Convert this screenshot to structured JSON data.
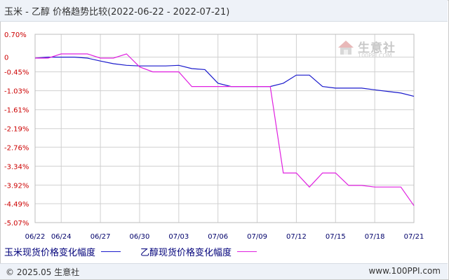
{
  "header": {
    "title": "玉米 - 乙醇 价格趋势比较(2022-06-22 - 2022-07-21)"
  },
  "watermark": {
    "text": "生意社",
    "sub": "100PPI.COM"
  },
  "legend": {
    "series_a": "玉米现货价格变化幅度",
    "series_b": "乙醇现货价格变化幅度"
  },
  "footer": {
    "copyright": "© 2025.05 生意社",
    "url": "www.100PPI.com"
  },
  "colors": {
    "series_a": "#1a1acc",
    "series_b": "#e020e0",
    "grid": "#d0d0d0",
    "axis_label_y": "#cc0000",
    "axis_label_x": "#00006a"
  },
  "chart_data": {
    "type": "line",
    "title": "玉米 - 乙醇 价格趋势比较(2022-06-22 - 2022-07-21)",
    "xlabel": "",
    "ylabel": "",
    "ylim": [
      -5.07,
      0.7
    ],
    "ylim_reversed_top": 0.7,
    "y_ticks": [
      0.7,
      0,
      -0.45,
      -1.03,
      -1.61,
      -2.19,
      -2.76,
      -3.34,
      -3.92,
      -4.49,
      -5.07
    ],
    "y_tick_labels": [
      "0.70%",
      "0",
      "-0.45%",
      "-1.03%",
      "-1.61%",
      "-2.19%",
      "-2.76%",
      "-3.34%",
      "-3.92%",
      "-4.49%",
      "-5.07%"
    ],
    "x_range": [
      "2022-06-22",
      "2022-07-21"
    ],
    "x_ticks": [
      "2022-06-22",
      "2022-06-24",
      "2022-06-27",
      "2022-06-30",
      "2022-07-03",
      "2022-07-06",
      "2022-07-09",
      "2022-07-12",
      "2022-07-15",
      "2022-07-18",
      "2022-07-21"
    ],
    "x_tick_labels": [
      "06/22",
      "06/24",
      "06/27",
      "06/30",
      "07/03",
      "07/06",
      "07/09",
      "07/12",
      "07/15",
      "07/18",
      "07/21"
    ],
    "grid": true,
    "legend_position": "bottom",
    "series": [
      {
        "name": "玉米现货价格变化幅度",
        "color": "#1a1acc",
        "points": [
          [
            "2022-06-22",
            -0.03
          ],
          [
            "2022-06-23",
            0.0
          ],
          [
            "2022-06-24",
            0.0
          ],
          [
            "2022-06-25",
            0.0
          ],
          [
            "2022-06-26",
            -0.03
          ],
          [
            "2022-06-27",
            -0.12
          ],
          [
            "2022-06-28",
            -0.2
          ],
          [
            "2022-06-29",
            -0.25
          ],
          [
            "2022-06-30",
            -0.27
          ],
          [
            "2022-07-01",
            -0.27
          ],
          [
            "2022-07-02",
            -0.27
          ],
          [
            "2022-07-03",
            -0.25
          ],
          [
            "2022-07-04",
            -0.35
          ],
          [
            "2022-07-05",
            -0.38
          ],
          [
            "2022-07-06",
            -0.8
          ],
          [
            "2022-07-07",
            -0.9
          ],
          [
            "2022-07-08",
            -0.9
          ],
          [
            "2022-07-09",
            -0.9
          ],
          [
            "2022-07-10",
            -0.9
          ],
          [
            "2022-07-11",
            -0.8
          ],
          [
            "2022-07-12",
            -0.55
          ],
          [
            "2022-07-13",
            -0.55
          ],
          [
            "2022-07-14",
            -0.9
          ],
          [
            "2022-07-15",
            -0.95
          ],
          [
            "2022-07-16",
            -0.95
          ],
          [
            "2022-07-17",
            -0.95
          ],
          [
            "2022-07-18",
            -1.0
          ],
          [
            "2022-07-19",
            -1.05
          ],
          [
            "2022-07-20",
            -1.1
          ],
          [
            "2022-07-21",
            -1.2
          ]
        ]
      },
      {
        "name": "乙醇现货价格变化幅度",
        "color": "#e020e0",
        "points": [
          [
            "2022-06-22",
            -0.03
          ],
          [
            "2022-06-23",
            -0.03
          ],
          [
            "2022-06-24",
            0.1
          ],
          [
            "2022-06-25",
            0.1
          ],
          [
            "2022-06-26",
            0.1
          ],
          [
            "2022-06-27",
            -0.03
          ],
          [
            "2022-06-28",
            -0.03
          ],
          [
            "2022-06-29",
            0.1
          ],
          [
            "2022-06-30",
            -0.3
          ],
          [
            "2022-07-01",
            -0.45
          ],
          [
            "2022-07-02",
            -0.45
          ],
          [
            "2022-07-03",
            -0.45
          ],
          [
            "2022-07-04",
            -0.9
          ],
          [
            "2022-07-05",
            -0.9
          ],
          [
            "2022-07-06",
            -0.9
          ],
          [
            "2022-07-07",
            -0.9
          ],
          [
            "2022-07-08",
            -0.9
          ],
          [
            "2022-07-09",
            -0.9
          ],
          [
            "2022-07-10",
            -0.9
          ],
          [
            "2022-07-11",
            -3.55
          ],
          [
            "2022-07-12",
            -3.55
          ],
          [
            "2022-07-13",
            -3.98
          ],
          [
            "2022-07-14",
            -3.55
          ],
          [
            "2022-07-15",
            -3.55
          ],
          [
            "2022-07-16",
            -3.93
          ],
          [
            "2022-07-17",
            -3.93
          ],
          [
            "2022-07-18",
            -3.98
          ],
          [
            "2022-07-19",
            -3.98
          ],
          [
            "2022-07-20",
            -3.98
          ],
          [
            "2022-07-21",
            -4.55
          ]
        ]
      }
    ]
  }
}
